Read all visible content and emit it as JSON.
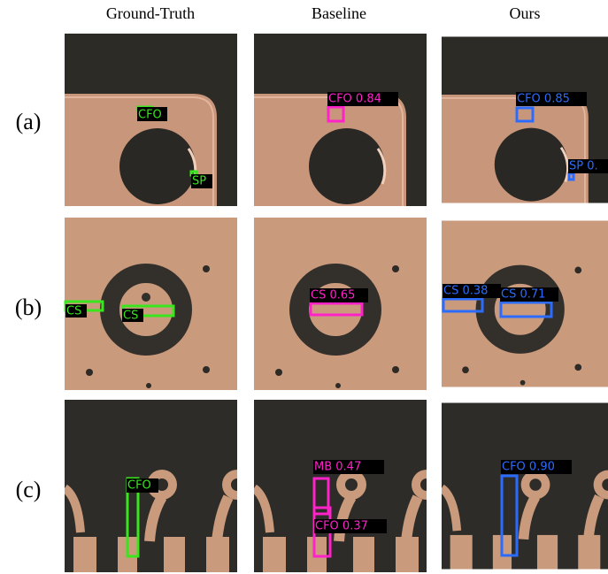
{
  "header": {
    "columns": [
      "Ground-Truth",
      "Baseline",
      "Ours"
    ]
  },
  "rows": [
    {
      "label": "(a)",
      "panels": [
        {
          "boxes": [
            {
              "label": "CFO"
            },
            {
              "label": "SP"
            }
          ]
        },
        {
          "boxes": [
            {
              "label": "CFO 0.84"
            }
          ]
        },
        {
          "boxes": [
            {
              "label": "CFO 0.85"
            },
            {
              "label": "SP 0."
            }
          ]
        }
      ]
    },
    {
      "label": "(b)",
      "panels": [
        {
          "boxes": [
            {
              "label": "CS"
            },
            {
              "label": "CS"
            }
          ]
        },
        {
          "boxes": [
            {
              "label": "CS 0.65"
            }
          ]
        },
        {
          "boxes": [
            {
              "label": "CS 0.38"
            },
            {
              "label": "CS 0.71"
            }
          ]
        }
      ]
    },
    {
      "label": "(c)",
      "panels": [
        {
          "boxes": [
            {
              "label": "CFO"
            }
          ]
        },
        {
          "boxes": [
            {
              "label": "MB 0.47"
            },
            {
              "label": "CFO 0.37"
            }
          ]
        },
        {
          "boxes": [
            {
              "label": "CFO 0.90"
            }
          ]
        }
      ]
    }
  ]
}
